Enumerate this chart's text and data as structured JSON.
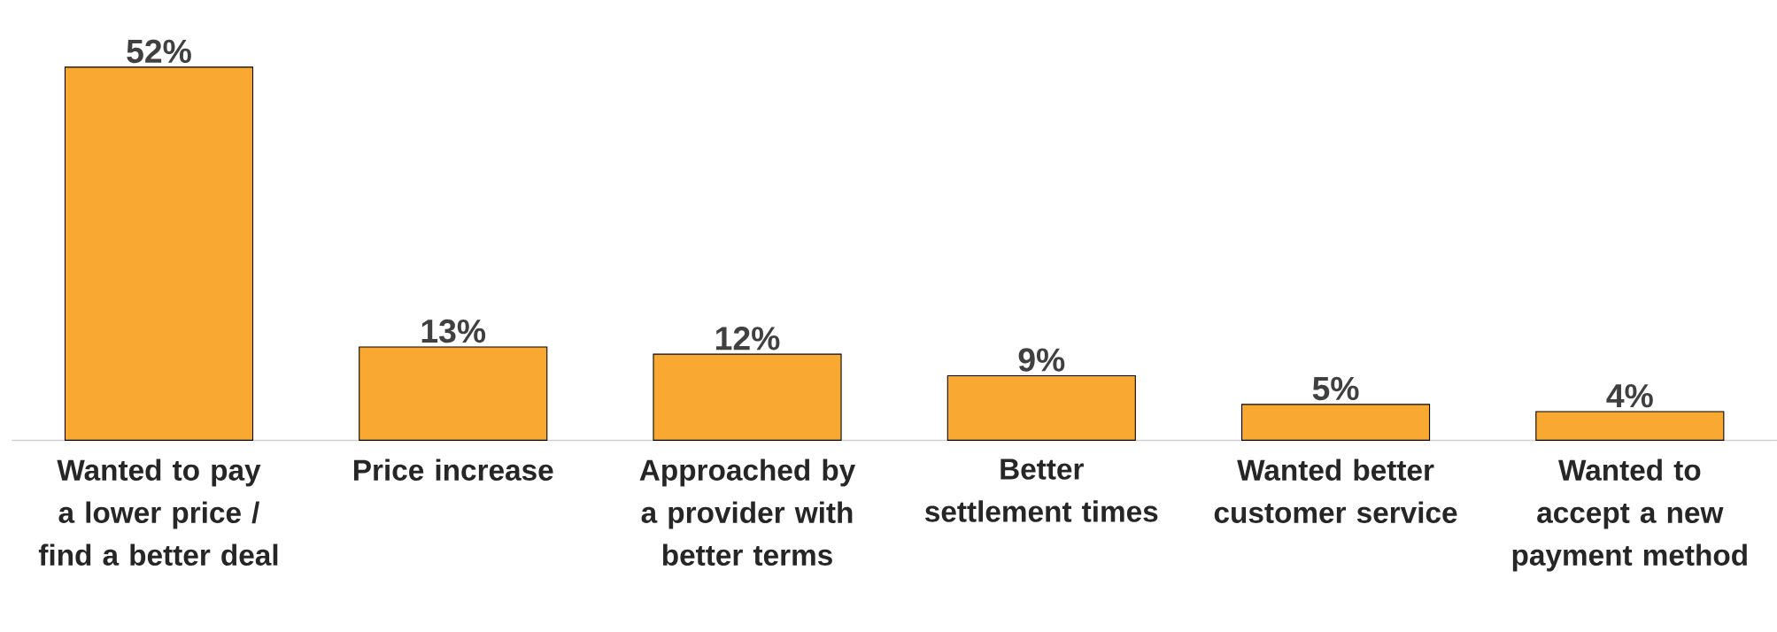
{
  "chart_data": {
    "type": "bar",
    "categories": [
      "Wanted to pay a lower price / find a better deal",
      "Price increase",
      "Approached by a provider with better terms",
      "Better settlement times",
      "Wanted better customer service",
      "Wanted to accept a new payment method"
    ],
    "values": [
      52,
      13,
      12,
      9,
      5,
      4
    ],
    "value_labels": [
      "52%",
      "13%",
      "12%",
      "9%",
      "5%",
      "4%"
    ],
    "color": "#f9a832"
  }
}
